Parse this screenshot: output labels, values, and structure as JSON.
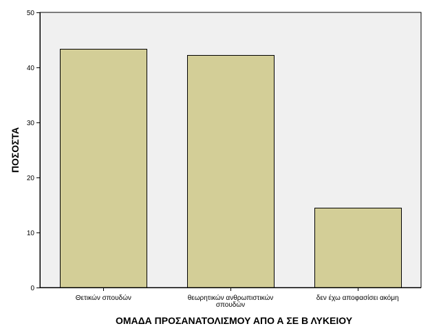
{
  "chart_data": {
    "type": "bar",
    "categories": [
      [
        "Θετικών σπουδών"
      ],
      [
        "θεωρητικών ανθρωπιστικών",
        "σπουδών"
      ],
      [
        "δεν έχω αποφασίσει ακόμη"
      ]
    ],
    "values": [
      43.4,
      42.2,
      14.5
    ],
    "xlabel": "ΟΜΑΔΑ ΠΡΟΣΑΝΑΤΟΛΙΣΜΟΥ ΑΠΟ Α ΣΕ Β ΛΥΚΕΙΟΥ",
    "ylabel": "ΠΟΣΟΣΤΑ",
    "ylim": [
      0,
      50
    ],
    "yticks": [
      0,
      10,
      20,
      30,
      40,
      50
    ],
    "grid": false,
    "colors": {
      "bar_fill": "#d3ce97",
      "bar_stroke": "#000000",
      "plot_background": "#f0f0f0"
    }
  }
}
